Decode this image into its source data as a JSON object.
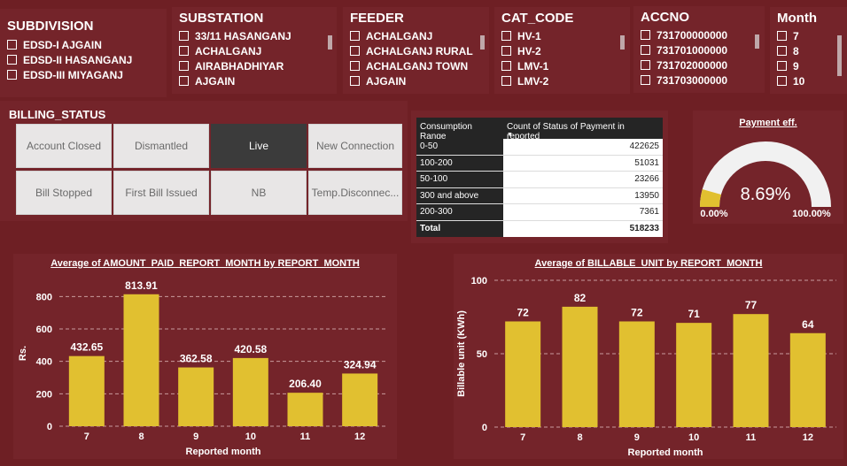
{
  "slicers": {
    "subdivision": {
      "title": "SUBDIVISION",
      "items": [
        "EDSD-I AJGAIN",
        "EDSD-II HASANGANJ",
        "EDSD-III MIYAGANJ"
      ]
    },
    "substation": {
      "title": "SUBSTATION",
      "items": [
        "33/11 HASANGANJ",
        "ACHALGANJ",
        "AIRABHADHIYAR",
        "AJGAIN"
      ]
    },
    "feeder": {
      "title": "FEEDER",
      "items": [
        "ACHALGANJ",
        "ACHALGANJ RURAL",
        "ACHALGANJ TOWN",
        "AJGAIN"
      ]
    },
    "cat_code": {
      "title": "CAT_CODE",
      "items": [
        "HV-1",
        "HV-2",
        "LMV-1",
        "LMV-2"
      ]
    },
    "accno": {
      "title": "ACCNO",
      "items": [
        "731700000000",
        "731701000000",
        "731702000000",
        "731703000000"
      ]
    },
    "month": {
      "title": "Month",
      "items": [
        "7",
        "8",
        "9",
        "10"
      ]
    }
  },
  "billing_status": {
    "title": "BILLING_STATUS",
    "buttons": [
      "Account Closed",
      "Dismantled",
      "Live",
      "New Connection",
      "Bill Stopped",
      "First Bill Issued",
      "NB",
      "Temp.Disconnec..."
    ],
    "active": "Live"
  },
  "table": {
    "headers": [
      "Consumption Range",
      "Count of Status of Payment in reported"
    ],
    "sort_icon": "sort-down-icon",
    "rows": [
      {
        "range": "0-50",
        "count": "422625"
      },
      {
        "range": "100-200",
        "count": "51031"
      },
      {
        "range": "50-100",
        "count": "23266"
      },
      {
        "range": "300 and above",
        "count": "13950"
      },
      {
        "range": "200-300",
        "count": "7361"
      }
    ],
    "total_label": "Total",
    "total_value": "518233"
  },
  "gauge": {
    "title": "Payment eff.",
    "value": 8.69,
    "value_label": "8.69%",
    "min_label": "0.00%",
    "max_label": "100.00%",
    "fill_color": "#e1c030",
    "track_color": "#f1f1f1"
  },
  "chart_data": [
    {
      "type": "bar",
      "title": "Average of AMOUNT_PAID_REPORT_MONTH by REPORT_MONTH",
      "xlabel": "Reported month",
      "ylabel": "Rs.",
      "categories": [
        "7",
        "8",
        "9",
        "10",
        "11",
        "12"
      ],
      "values": [
        432.65,
        813.91,
        362.58,
        420.58,
        206.4,
        324.94
      ],
      "value_labels": [
        "432.65",
        "813.91",
        "362.58",
        "420.58",
        "206.40",
        "324.94"
      ],
      "yticks": [
        0,
        200,
        400,
        600,
        800
      ],
      "ylim": [
        0,
        900
      ],
      "grid": true,
      "color": "#e1c030"
    },
    {
      "type": "bar",
      "title": "Average of BILLABLE_UNIT by REPORT_MONTH",
      "xlabel": "Reported month",
      "ylabel": "Billable unit (KWh)",
      "categories": [
        "7",
        "8",
        "9",
        "10",
        "11",
        "12"
      ],
      "values": [
        72,
        82,
        72,
        71,
        77,
        64
      ],
      "value_labels": [
        "72",
        "82",
        "72",
        "71",
        "77",
        "64"
      ],
      "yticks": [
        0,
        50,
        100
      ],
      "ylim": [
        0,
        100
      ],
      "grid": true,
      "color": "#e1c030"
    }
  ]
}
